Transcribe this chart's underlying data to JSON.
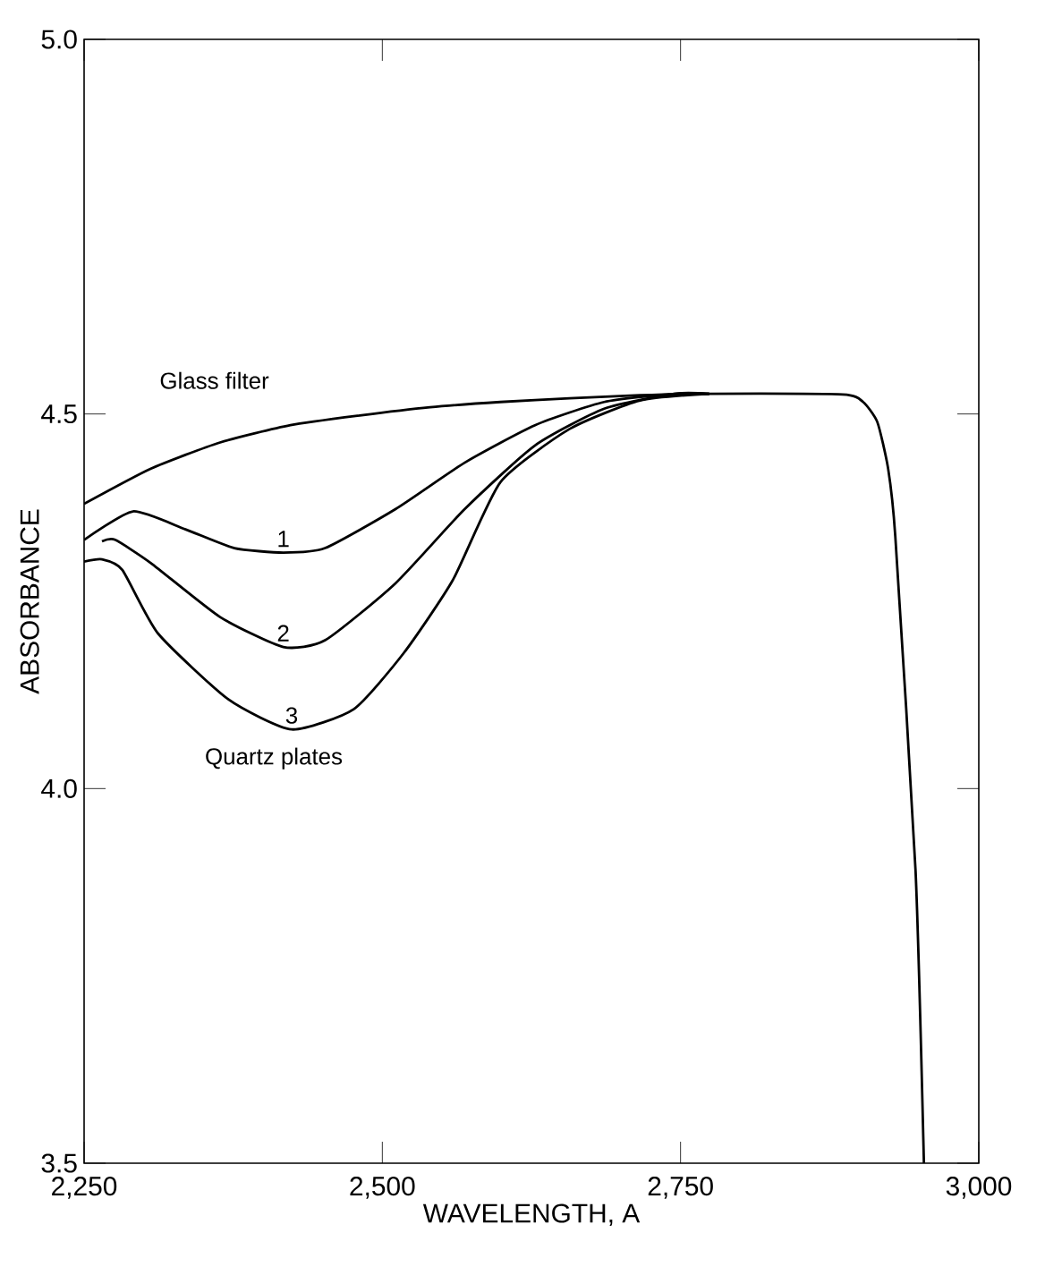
{
  "chart_data": {
    "type": "line",
    "xlabel": "WAVELENGTH, A",
    "ylabel": "ABSORBANCE",
    "xlim": [
      2250,
      3000
    ],
    "ylim": [
      3.5,
      5.0
    ],
    "xticks": [
      {
        "value": 2250,
        "label": "2,250"
      },
      {
        "value": 2500,
        "label": "2,500"
      },
      {
        "value": 2750,
        "label": "2,750"
      },
      {
        "value": 3000,
        "label": "3,000"
      }
    ],
    "yticks": [
      {
        "value": 3.5,
        "label": "3.5"
      },
      {
        "value": 4.0,
        "label": "4.0"
      },
      {
        "value": 4.5,
        "label": "4.5"
      },
      {
        "value": 5.0,
        "label": "5.0"
      }
    ],
    "series": [
      {
        "name": "Glass filter",
        "color": "#000000",
        "x": [
          2250,
          2306,
          2364,
          2423,
          2481,
          2540,
          2599,
          2657,
          2716,
          2774,
          2886,
          2903,
          2915,
          2924,
          2930,
          2947,
          2954
        ],
        "values": [
          4.38,
          4.427,
          4.462,
          4.485,
          4.498,
          4.509,
          4.516,
          4.521,
          4.525,
          4.527,
          4.526,
          4.516,
          4.489,
          4.427,
          4.337,
          3.89,
          3.5
        ]
      },
      {
        "name": "1",
        "color": "#000000",
        "x": [
          2250,
          2291,
          2335,
          2376,
          2417,
          2452,
          2511,
          2569,
          2628,
          2686,
          2745,
          2774
        ],
        "values": [
          4.332,
          4.37,
          4.346,
          4.321,
          4.315,
          4.321,
          4.373,
          4.435,
          4.485,
          4.516,
          4.527,
          4.527
        ]
      },
      {
        "name": "2",
        "color": "#000000",
        "x": [
          2265,
          2276,
          2306,
          2364,
          2417,
          2452,
          2511,
          2569,
          2628,
          2686,
          2745,
          2774
        ],
        "values": [
          4.33,
          4.332,
          4.301,
          4.229,
          4.189,
          4.198,
          4.274,
          4.373,
          4.458,
          4.507,
          4.527,
          4.527
        ]
      },
      {
        "name": "3",
        "color": "#000000",
        "x": [
          2250,
          2265,
          2282,
          2312,
          2371,
          2424,
          2476,
          2518,
          2559,
          2599,
          2657,
          2716,
          2774
        ],
        "values": [
          4.303,
          4.306,
          4.292,
          4.207,
          4.119,
          4.079,
          4.106,
          4.181,
          4.278,
          4.409,
          4.48,
          4.518,
          4.527
        ]
      }
    ],
    "annotations": [
      "Quartz plates"
    ],
    "grid": false,
    "marker": "none",
    "line_style": "solid"
  }
}
